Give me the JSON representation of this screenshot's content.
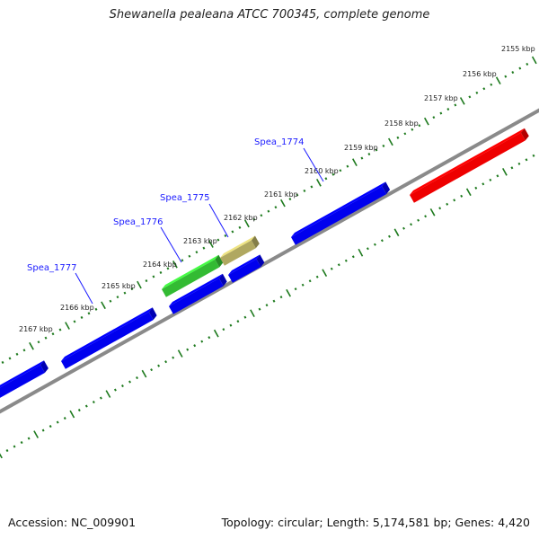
{
  "title": "Shewanella pealeana ATCC 700345, complete genome",
  "footer": {
    "accession": "Accession: NC_009901",
    "summary": "Topology: circular; Length: 5,174,581 bp; Genes: 4,420"
  },
  "kbp_labels": [
    "2155 kbp",
    "2156 kbp",
    "2157 kbp",
    "2158 kbp",
    "2159 kbp",
    "2160 kbp",
    "2161 kbp",
    "2162 kbp",
    "2163 kbp",
    "2164 kbp",
    "2165 kbp",
    "2166 kbp",
    "2167 kbp"
  ],
  "gene_labels": [
    "Spea_1774",
    "Spea_1775",
    "Spea_1776",
    "Spea_1777"
  ],
  "colors": {
    "backbone": "#8a8a8a",
    "ticks": "#1e7a1e",
    "forward_gene": "#0000ee",
    "highlight_gene": "#ee0000",
    "green_gene": "#33bb33",
    "olive_gene": "#b0a860",
    "label": "#1a1aff"
  }
}
